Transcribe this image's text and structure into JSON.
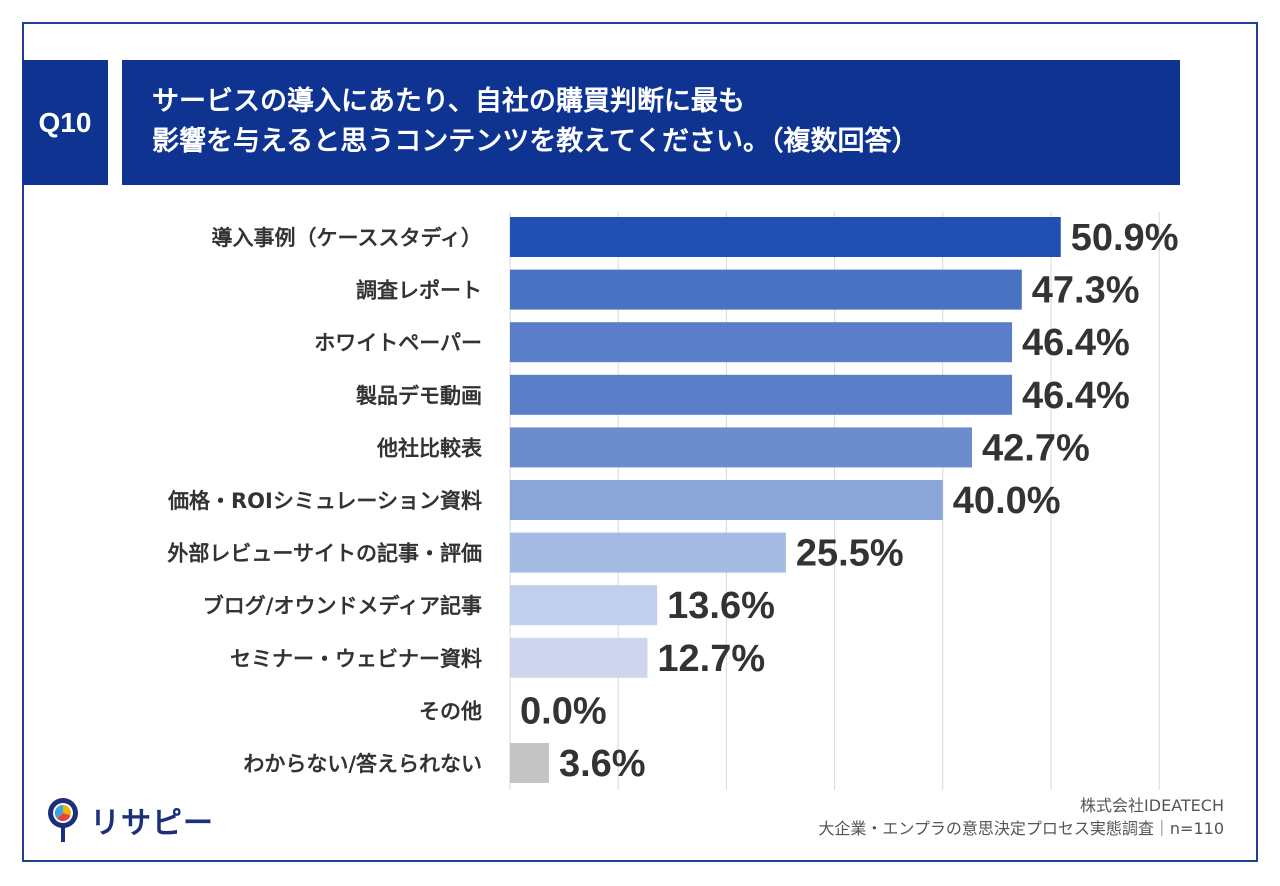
{
  "question": {
    "number": "Q10",
    "title_line1": "サービスの導入にあたり、自社の購買判断に最も",
    "title_line2": "影響を与えると思うコンテンツを教えてください。（複数回答）"
  },
  "chart_data": {
    "type": "bar",
    "orientation": "horizontal",
    "categories": [
      "導入事例（ケーススタディ）",
      "調査レポート",
      "ホワイトペーパー",
      "製品デモ動画",
      "他社比較表",
      "価格・ROIシミュレーション資料",
      "外部レビューサイトの記事・評価",
      "ブログ/オウンドメディア記事",
      "セミナー・ウェビナー資料",
      "その他",
      "わからない/答えられない"
    ],
    "values": [
      50.9,
      47.3,
      46.4,
      46.4,
      42.7,
      40.0,
      25.5,
      13.6,
      12.7,
      0.0,
      3.6
    ],
    "value_labels": [
      "50.9%",
      "47.3%",
      "46.4%",
      "46.4%",
      "42.7%",
      "40.0%",
      "25.5%",
      "13.6%",
      "12.7%",
      "0.0%",
      "3.6%"
    ],
    "colors": [
      "#2150b2",
      "#4a72c2",
      "#5a7fc8",
      "#5a7fc8",
      "#6c8ccd",
      "#8aa6d9",
      "#a5bbe3",
      "#c0cfec",
      "#cdd6ec",
      "#dde3f2",
      "#c4c4c4"
    ],
    "xlim": [
      0,
      60
    ],
    "grid": true,
    "gridline_values": [
      10,
      20,
      30,
      40,
      50,
      60
    ]
  },
  "logo": {
    "text": "リサピー"
  },
  "source": {
    "line1": "株式会社IDEATECH",
    "line2": "大企業・エンプラの意思決定プロセス実態調査｜n=110"
  }
}
